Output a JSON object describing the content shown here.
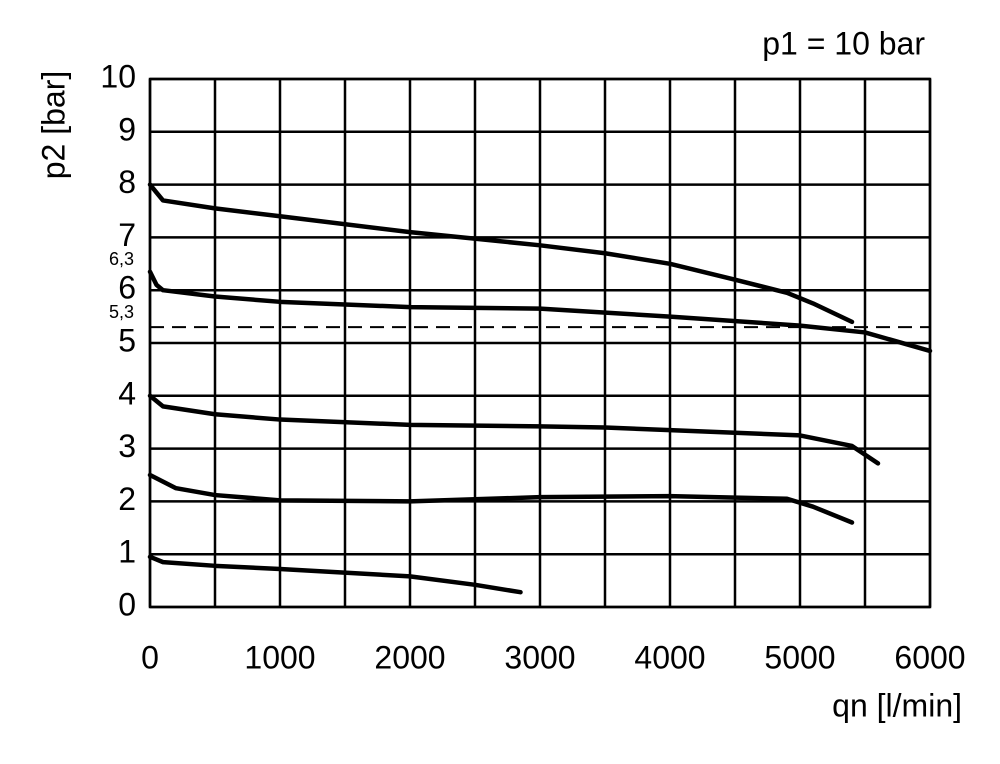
{
  "chart_data": {
    "type": "line",
    "title": "p1 = 10 bar",
    "y_label": "p2 [bar]",
    "x_label": "qn [l/min]",
    "xlim": [
      0,
      6000
    ],
    "xticks": [
      0,
      1000,
      2000,
      3000,
      4000,
      5000,
      6000
    ],
    "x_minor_grid": [
      500,
      1500,
      2500,
      3500,
      4500,
      5500
    ],
    "ylim": [
      0,
      10
    ],
    "yticks": [
      0,
      1,
      2,
      3,
      4,
      5,
      6,
      7,
      8,
      9,
      10
    ],
    "grid": true,
    "annotations": [
      {
        "value": 6.3,
        "label": "6,3"
      },
      {
        "value": 5.3,
        "label": "5,3",
        "dashed": true
      }
    ],
    "series": [
      {
        "color": "#000000",
        "x": [
          0,
          50,
          100,
          500,
          1000,
          2000,
          3000,
          3500,
          4000,
          4500,
          4900,
          5100,
          5400
        ],
        "values": [
          8.0,
          7.85,
          7.7,
          7.55,
          7.4,
          7.1,
          6.85,
          6.7,
          6.5,
          6.2,
          5.95,
          5.75,
          5.4
        ]
      },
      {
        "color": "#000000",
        "x": [
          0,
          50,
          100,
          500,
          1000,
          2000,
          3000,
          4000,
          5000,
          5500,
          6000
        ],
        "values": [
          6.35,
          6.1,
          6.0,
          5.88,
          5.78,
          5.68,
          5.65,
          5.5,
          5.33,
          5.2,
          4.85
        ]
      },
      {
        "color": "#000000",
        "x": [
          0,
          100,
          500,
          1000,
          2000,
          3000,
          3500,
          4000,
          5000,
          5400,
          5600
        ],
        "values": [
          4.0,
          3.8,
          3.65,
          3.55,
          3.45,
          3.42,
          3.4,
          3.35,
          3.25,
          3.05,
          2.72
        ]
      },
      {
        "color": "#000000",
        "x": [
          0,
          200,
          500,
          1000,
          2000,
          3000,
          4000,
          4900,
          5100,
          5400
        ],
        "values": [
          2.5,
          2.25,
          2.12,
          2.02,
          2.0,
          2.08,
          2.1,
          2.05,
          1.9,
          1.6
        ]
      },
      {
        "color": "#000000",
        "x": [
          0,
          100,
          500,
          1000,
          2000,
          2500,
          2850
        ],
        "values": [
          0.95,
          0.85,
          0.78,
          0.72,
          0.58,
          0.42,
          0.28
        ]
      }
    ]
  }
}
